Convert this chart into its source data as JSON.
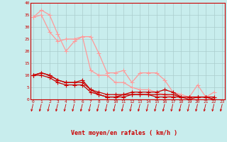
{
  "xlabel": "Vent moyen/en rafales ( km/h )",
  "background_color": "#c8eded",
  "grid_color": "#aacccc",
  "x_ticks": [
    0,
    1,
    2,
    3,
    4,
    5,
    6,
    7,
    8,
    9,
    10,
    11,
    12,
    13,
    14,
    15,
    16,
    17,
    18,
    19,
    20,
    21,
    22,
    23
  ],
  "y_ticks": [
    0,
    5,
    10,
    15,
    20,
    25,
    30,
    35,
    40
  ],
  "xlim": [
    -0.3,
    23.3
  ],
  "ylim": [
    0,
    40
  ],
  "series_light": [
    [
      34,
      37,
      35,
      27,
      20,
      24,
      26,
      26,
      19,
      11,
      11,
      12,
      7,
      11,
      11,
      11,
      8,
      3,
      2,
      1,
      6,
      1,
      3
    ],
    [
      34,
      35,
      28,
      24,
      25,
      25,
      26,
      12,
      10,
      10,
      7,
      7,
      5,
      4,
      4,
      3,
      2,
      1,
      1,
      1,
      1,
      1,
      1
    ]
  ],
  "series_dark": [
    [
      10,
      11,
      10,
      8,
      7,
      7,
      8,
      4,
      3,
      2,
      2,
      2,
      3,
      3,
      3,
      3,
      4,
      3,
      1,
      1,
      1,
      1,
      1
    ],
    [
      10,
      11,
      10,
      8,
      7,
      7,
      7,
      4,
      2,
      1,
      1,
      2,
      2,
      2,
      2,
      2,
      2,
      2,
      1,
      1,
      1,
      1,
      0
    ],
    [
      10,
      10,
      9,
      7,
      6,
      6,
      6,
      3,
      2,
      1,
      1,
      1,
      2,
      2,
      2,
      1,
      1,
      1,
      1,
      0,
      1,
      1,
      0
    ]
  ],
  "light_color": "#ff9999",
  "dark_color": "#cc0000",
  "tick_color": "#cc0000",
  "spine_color": "#cc0000",
  "xlabel_color": "#cc0000",
  "marker": "+",
  "marker_size": 4,
  "linewidth": 0.9
}
